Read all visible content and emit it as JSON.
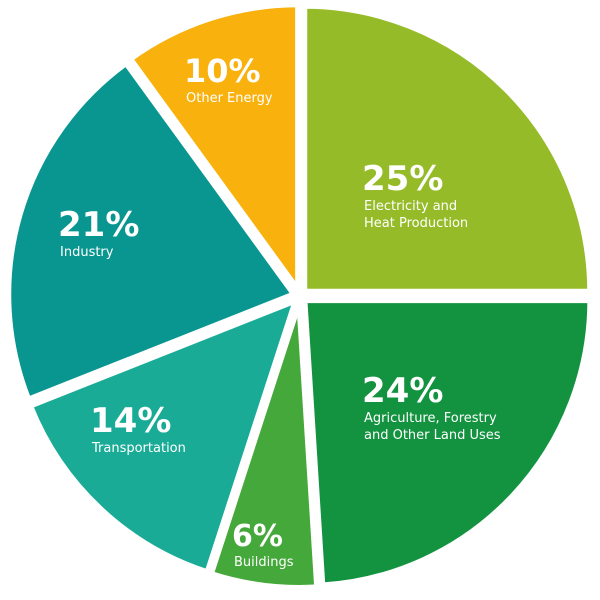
{
  "chart_data": {
    "type": "pie",
    "title": "",
    "slices": [
      {
        "percent_label": "25%",
        "label_lines": [
          "Electricity and",
          "Heat Production"
        ],
        "value": 25,
        "color": "#95bc28"
      },
      {
        "percent_label": "24%",
        "label_lines": [
          "Agriculture, Forestry",
          "and Other Land Uses"
        ],
        "value": 24,
        "color": "#139340"
      },
      {
        "percent_label": "6%",
        "label_lines": [
          "Buildings"
        ],
        "value": 6,
        "color": "#45a83a"
      },
      {
        "percent_label": "14%",
        "label_lines": [
          "Transportation"
        ],
        "value": 14,
        "color": "#1aab97"
      },
      {
        "percent_label": "21%",
        "label_lines": [
          "Industry"
        ],
        "value": 21,
        "color": "#0a9690"
      },
      {
        "percent_label": "10%",
        "label_lines": [
          "Other Energy"
        ],
        "value": 10,
        "color": "#f8b10d"
      }
    ],
    "legend": "none",
    "exploded": true
  }
}
